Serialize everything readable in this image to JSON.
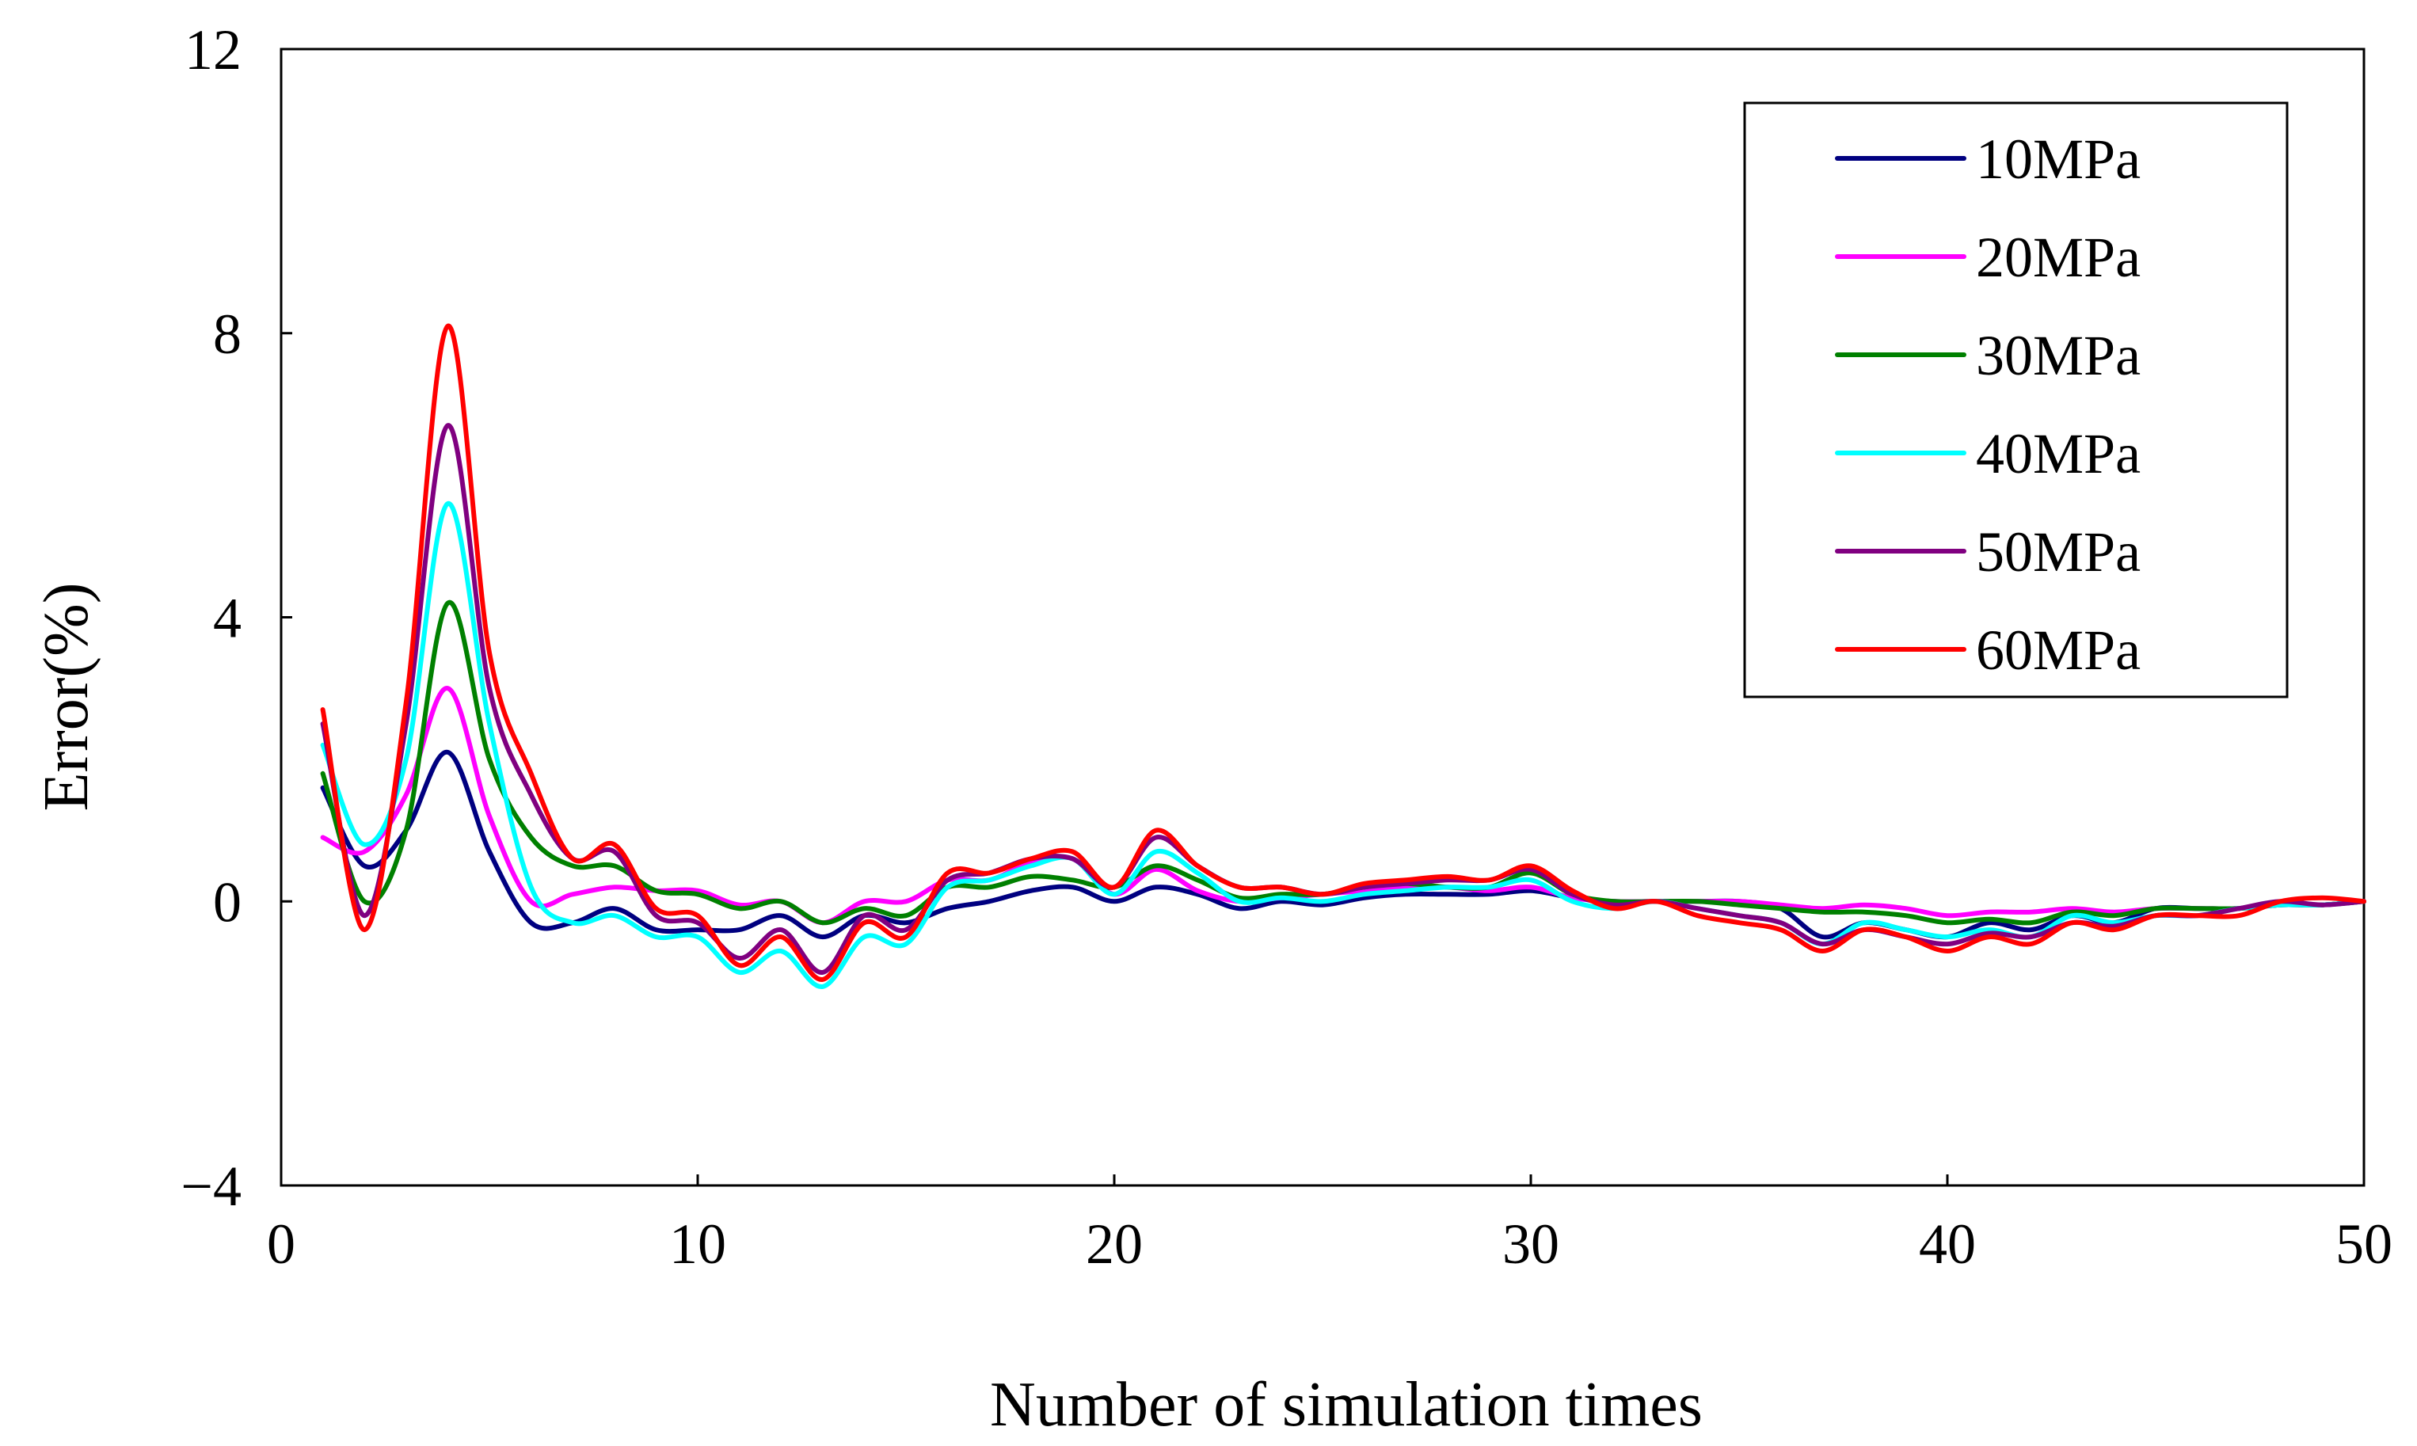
{
  "chart_data": {
    "type": "line",
    "title": "",
    "xlabel": "Number of simulation times",
    "ylabel": "Error(%)",
    "xlim": [
      0,
      50
    ],
    "ylim": [
      -4,
      12
    ],
    "xticks": [
      0,
      10,
      20,
      30,
      40,
      50
    ],
    "yticks": [
      -4,
      0,
      4,
      8,
      12
    ],
    "ytick_labels": [
      "−4",
      "0",
      "4",
      "8",
      "12"
    ],
    "grid": false,
    "legend_position": "top-right",
    "x": [
      1,
      2,
      3,
      4,
      5,
      6,
      7,
      8,
      9,
      10,
      11,
      12,
      13,
      14,
      15,
      16,
      17,
      18,
      19,
      20,
      21,
      22,
      23,
      24,
      25,
      26,
      27,
      28,
      29,
      30,
      31,
      32,
      33,
      34,
      35,
      36,
      37,
      38,
      39,
      40,
      41,
      42,
      43,
      44,
      45,
      46,
      47,
      48,
      49,
      50
    ],
    "series": [
      {
        "name": "10MPa",
        "color": "#000080",
        "values": [
          1.6,
          0.5,
          1.0,
          2.1,
          0.7,
          -0.3,
          -0.3,
          -0.1,
          -0.4,
          -0.4,
          -0.4,
          -0.2,
          -0.5,
          -0.2,
          -0.3,
          -0.1,
          0.0,
          0.15,
          0.2,
          0.0,
          0.2,
          0.1,
          -0.1,
          0.0,
          -0.05,
          0.05,
          0.1,
          0.1,
          0.1,
          0.15,
          0.05,
          0.0,
          0.0,
          0.0,
          0.0,
          -0.1,
          -0.5,
          -0.3,
          -0.4,
          -0.5,
          -0.3,
          -0.4,
          -0.2,
          -0.3,
          -0.1,
          -0.1,
          -0.1,
          -0.05,
          -0.05,
          0.0
        ]
      },
      {
        "name": "20MPa",
        "color": "#FF00FF",
        "values": [
          0.9,
          0.7,
          1.5,
          3.0,
          1.2,
          0.0,
          0.1,
          0.2,
          0.15,
          0.15,
          -0.05,
          0.0,
          -0.3,
          0.0,
          0.0,
          0.3,
          0.3,
          0.55,
          0.6,
          0.1,
          0.45,
          0.15,
          0.0,
          0.05,
          0.1,
          0.15,
          0.2,
          0.2,
          0.15,
          0.2,
          0.05,
          0.0,
          0.0,
          0.0,
          0.0,
          -0.05,
          -0.1,
          -0.05,
          -0.1,
          -0.2,
          -0.15,
          -0.15,
          -0.1,
          -0.15,
          -0.1,
          -0.1,
          -0.1,
          -0.05,
          -0.05,
          0.0
        ]
      },
      {
        "name": "30MPa",
        "color": "#008000",
        "values": [
          1.8,
          0.0,
          1.0,
          4.2,
          2.0,
          0.9,
          0.5,
          0.5,
          0.15,
          0.1,
          -0.1,
          0.0,
          -0.3,
          -0.1,
          -0.2,
          0.2,
          0.2,
          0.35,
          0.3,
          0.2,
          0.5,
          0.3,
          0.05,
          0.1,
          0.1,
          0.2,
          0.25,
          0.2,
          0.2,
          0.4,
          0.1,
          0.0,
          0.0,
          0.0,
          -0.05,
          -0.1,
          -0.15,
          -0.15,
          -0.2,
          -0.3,
          -0.25,
          -0.3,
          -0.15,
          -0.2,
          -0.1,
          -0.1,
          -0.1,
          -0.05,
          -0.05,
          0.0
        ]
      },
      {
        "name": "40MPa",
        "color": "#00FFFF",
        "values": [
          2.2,
          0.8,
          2.0,
          5.6,
          2.5,
          0.2,
          -0.3,
          -0.2,
          -0.5,
          -0.5,
          -1.0,
          -0.7,
          -1.2,
          -0.5,
          -0.6,
          0.2,
          0.3,
          0.5,
          0.6,
          0.1,
          0.7,
          0.4,
          0.0,
          0.05,
          0.0,
          0.1,
          0.15,
          0.2,
          0.2,
          0.3,
          0.0,
          -0.1,
          0.0,
          -0.1,
          -0.2,
          -0.3,
          -0.6,
          -0.3,
          -0.4,
          -0.5,
          -0.4,
          -0.5,
          -0.2,
          -0.3,
          -0.2,
          -0.2,
          -0.1,
          -0.05,
          -0.05,
          0.0
        ]
      },
      {
        "name": "50MPa",
        "color": "#800080",
        "values": [
          2.5,
          -0.2,
          2.5,
          6.7,
          3.0,
          1.5,
          0.6,
          0.7,
          -0.2,
          -0.3,
          -0.8,
          -0.4,
          -1.0,
          -0.2,
          -0.4,
          0.3,
          0.4,
          0.6,
          0.6,
          0.2,
          0.9,
          0.5,
          0.2,
          0.2,
          0.1,
          0.2,
          0.25,
          0.3,
          0.3,
          0.45,
          0.1,
          -0.05,
          0.0,
          -0.1,
          -0.2,
          -0.3,
          -0.6,
          -0.4,
          -0.5,
          -0.6,
          -0.45,
          -0.5,
          -0.3,
          -0.35,
          -0.2,
          -0.2,
          -0.1,
          0.0,
          -0.05,
          0.0
        ]
      },
      {
        "name": "60MPa",
        "color": "#FF0000",
        "values": [
          2.7,
          -0.4,
          2.8,
          8.1,
          3.5,
          1.8,
          0.6,
          0.8,
          -0.1,
          -0.2,
          -0.9,
          -0.5,
          -1.1,
          -0.3,
          -0.5,
          0.4,
          0.4,
          0.6,
          0.7,
          0.2,
          1.0,
          0.5,
          0.2,
          0.2,
          0.1,
          0.25,
          0.3,
          0.35,
          0.3,
          0.5,
          0.15,
          -0.1,
          0.0,
          -0.2,
          -0.3,
          -0.4,
          -0.7,
          -0.4,
          -0.5,
          -0.7,
          -0.5,
          -0.6,
          -0.3,
          -0.4,
          -0.2,
          -0.2,
          -0.2,
          0.0,
          0.05,
          0.0
        ]
      }
    ]
  }
}
